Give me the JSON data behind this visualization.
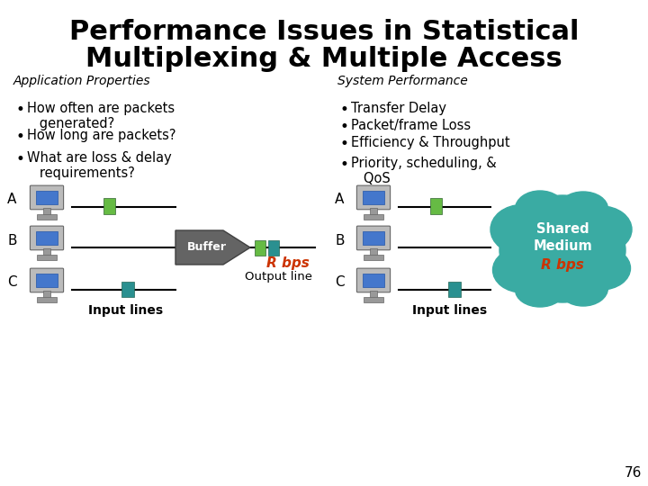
{
  "title_line1": "Performance Issues in Statistical",
  "title_line2": "Multiplexing & Multiple Access",
  "title_fontsize": 22,
  "bg_color": "#ffffff",
  "left_heading": "Application Properties",
  "right_heading": "System Performance",
  "left_bullets": [
    "How often are packets\n   generated?",
    "How long are packets?",
    "What are loss & delay\n   requirements?"
  ],
  "right_bullets": [
    "Transfer Delay",
    "Packet/frame Loss",
    "Efficiency & Throughput",
    "Priority, scheduling, &\n   QoS"
  ],
  "buffer_label": "Buffer",
  "output_label": "Output line",
  "input_label": "Input lines",
  "r_bps_label": "R bps",
  "shared_medium_label": "Shared\nMedium",
  "page_number": "76",
  "teal_color": "#3AABA3",
  "green_pkt_color": "#66BB44",
  "teal_pkt_color": "#2A9090",
  "orange_red": "#CC3300",
  "gray_arrow": "#646464",
  "black": "#000000",
  "white": "#ffffff",
  "computer_body": "#AAAAAA",
  "computer_screen": "#4477CC",
  "computer_stand": "#999999"
}
